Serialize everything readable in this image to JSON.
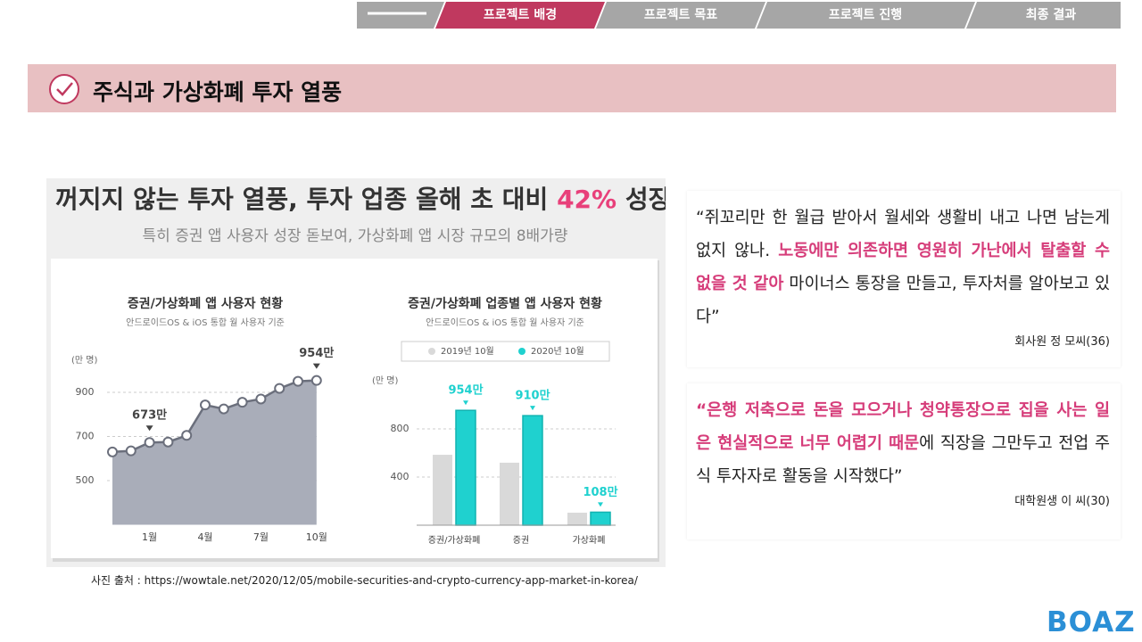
{
  "nav": {
    "tabs": [
      "프로젝트 배경",
      "프로젝트 목표",
      "프로젝트 진행",
      "최종 결과"
    ]
  },
  "section_title": "주식과 가상화폐 투자 열풍",
  "infographic": {
    "headline": [
      "꺼지지 않는 투자 열풍, 투자 업종 올해 초 대비 ",
      "42%",
      " 성장"
    ],
    "subheadline": "특히 증권 앱 사용자 성장 돋보여, 가상화폐 앱 시장 규모의 8배가량"
  },
  "chart_data": [
    {
      "type": "line",
      "title": "증권/가상화폐 앱 사용자 현황",
      "subtitle": "안드로이드OS & iOS 통합 월 사용자 기준",
      "y_label": "(만 명)",
      "categories": [
        null,
        null,
        "1월",
        null,
        null,
        "4월",
        null,
        null,
        "7월",
        null,
        null,
        "10월"
      ],
      "values": [
        630,
        635,
        673,
        675,
        705,
        843,
        825,
        855,
        870,
        918,
        950,
        954
      ],
      "value_labels": [
        null,
        null,
        "673만",
        null,
        null,
        null,
        null,
        null,
        null,
        null,
        null,
        "954만"
      ],
      "color": "#a9adb9",
      "ylim": [
        300,
        1000
      ],
      "yticks": [
        500,
        700,
        900
      ],
      "grid": true
    },
    {
      "type": "bar",
      "title": "증권/가상화폐 업종별 앱 사용자 현황",
      "subtitle": "안드로이드OS & iOS 통합 월 사용자 기준",
      "y_label": "(만 명)",
      "categories": [
        "증권/가상화폐",
        "증권",
        "가상화폐"
      ],
      "series": [
        {
          "name": "2019년 10월",
          "color": "#d9d9d9",
          "values": [
            585,
            519,
            104
          ]
        },
        {
          "name": "2020년 10월",
          "color": "#1fd1cf",
          "values": [
            954,
            910,
            108
          ],
          "value_labels": [
            "954만",
            "910만",
            "108만"
          ]
        }
      ],
      "ylim": [
        0,
        1100
      ],
      "yticks": [
        400,
        800
      ],
      "grid": true
    }
  ],
  "quotes": [
    {
      "parts": [
        "“쥐꼬리만 한 월급 받아서 월세와 생활비 내고 나면 남는게 없지 않나. ",
        "노동에만 의존하면 영원히 가난에서 탈출할 수 없을 것 같아",
        " 마이너스 통장을 만들고, 투자처를 알아보고 있다”"
      ],
      "attribution": "회사원 정 모씨(36)"
    },
    {
      "parts": [
        "“",
        "은행 저축으로 돈을 모으거나 청약통장으로 집을 사는 일은 현실적으로 너무 어렵기 때문",
        "에 직장을 그만두고 전업 주식 투자자로 활동을 시작했다”"
      ],
      "attribution": "대학원생 이 씨(30)"
    }
  ],
  "source": "사진 출처 : https://wowtale.net/2020/12/05/mobile-securities-and-crypto-currency-app-market-in-korea/",
  "logo": "BOAZ"
}
